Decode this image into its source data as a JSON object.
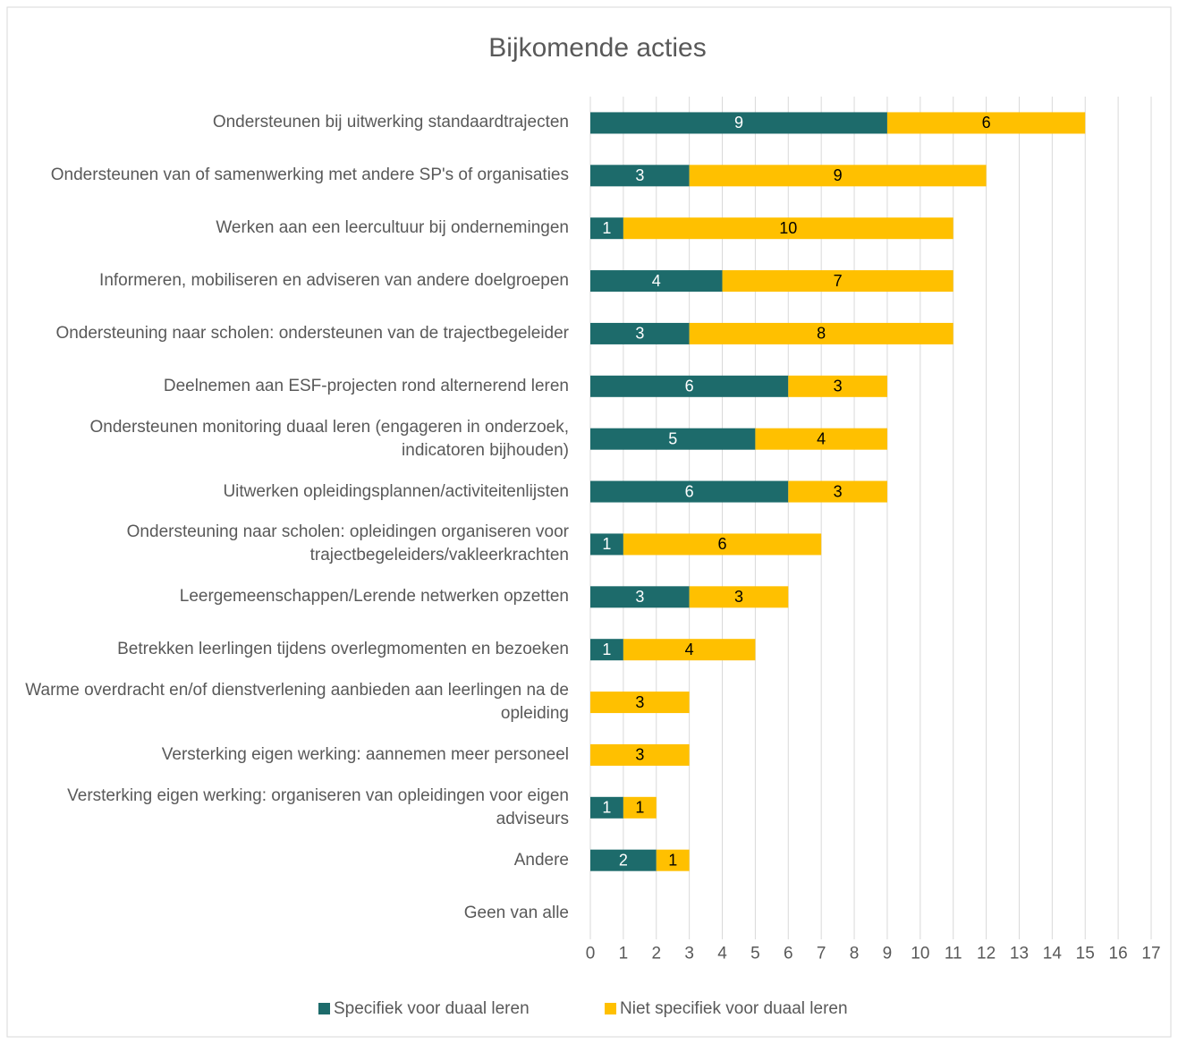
{
  "chart_data": {
    "type": "stacked_barh",
    "title": "Bijkomende acties",
    "categories": [
      "Ondersteunen bij uitwerking standaardtrajecten",
      "Ondersteunen van of samenwerking met andere SP's of organisaties",
      "Werken aan een leercultuur bij ondernemingen",
      "Informeren, mobiliseren en adviseren van andere doelgroepen",
      "Ondersteuning naar scholen: ondersteunen van de trajectbegeleider",
      "Deelnemen aan ESF-projecten rond alternerend leren",
      "Ondersteunen monitoring duaal leren (engageren in onderzoek, indicatoren bijhouden)",
      "Uitwerken opleidingsplannen/activiteitenlijsten",
      "Ondersteuning naar scholen: opleidingen organiseren voor trajectbegeleiders/vakleerkrachten",
      "Leergemeenschappen/Lerende netwerken opzetten",
      "Betrekken leerlingen tijdens overlegmomenten en bezoeken",
      "Warme overdracht en/of dienstverlening aanbieden aan leerlingen na de opleiding",
      "Versterking eigen werking: aannemen meer personeel",
      "Versterking eigen werking: organiseren van opleidingen voor eigen adviseurs",
      "Andere",
      "Geen van alle"
    ],
    "series": [
      {
        "name": "Specifiek voor duaal leren",
        "color": "#1d6b6b",
        "label_color": "#ffffff",
        "values": [
          9,
          3,
          1,
          4,
          3,
          6,
          5,
          6,
          1,
          3,
          1,
          0,
          0,
          1,
          2,
          0
        ]
      },
      {
        "name": "Niet specifiek voor duaal leren",
        "color": "#ffc000",
        "label_color": "#000000",
        "values": [
          6,
          9,
          10,
          7,
          8,
          3,
          4,
          3,
          6,
          3,
          4,
          3,
          3,
          1,
          1,
          0
        ]
      }
    ],
    "xlim": [
      0,
      17
    ],
    "xticks": [
      0,
      1,
      2,
      3,
      4,
      5,
      6,
      7,
      8,
      9,
      10,
      11,
      12,
      13,
      14,
      15,
      16,
      17
    ],
    "grid": true,
    "legend": "bottom"
  }
}
